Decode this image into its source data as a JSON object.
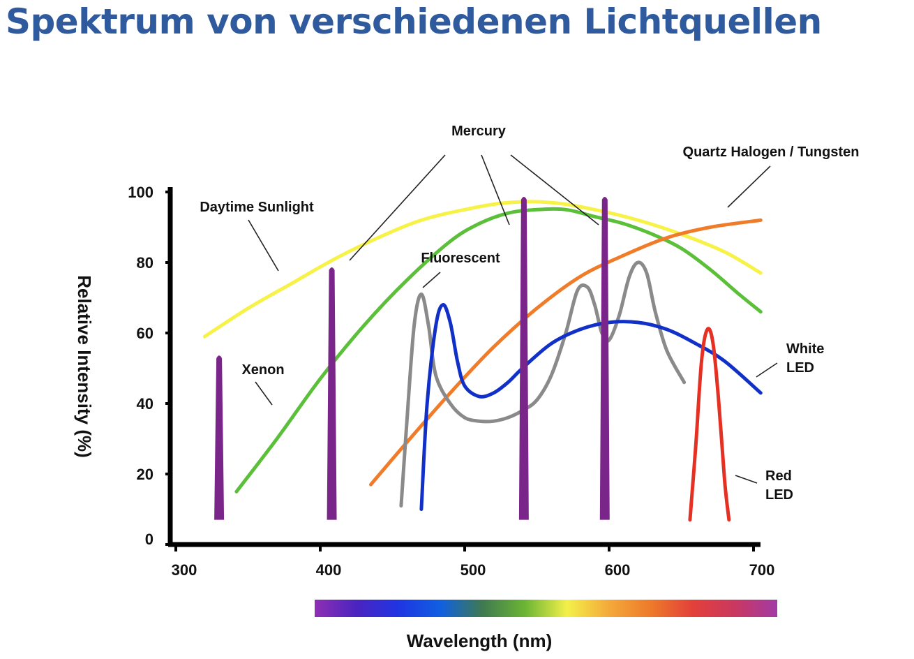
{
  "title": "Spektrum von verschiedenen Lichtquellen",
  "chart_data": {
    "type": "line",
    "xlabel": "Wavelength (nm)",
    "ylabel": "Relative Intensity (%)",
    "xlim": [
      300,
      700
    ],
    "ylim": [
      0,
      100
    ],
    "x_ticks": [
      300,
      400,
      500,
      600,
      700
    ],
    "y_ticks": [
      0,
      20,
      40,
      60,
      80,
      100
    ],
    "grid": false,
    "series": [
      {
        "name": "Daytime Sunlight",
        "color": "#f7f247",
        "x": [
          320,
          350,
          380,
          410,
          440,
          470,
          500,
          530,
          560,
          590,
          620,
          650,
          680,
          705
        ],
        "y": [
          59,
          67,
          74,
          81,
          87,
          92,
          95,
          97,
          97,
          95,
          92,
          88,
          83,
          77
        ]
      },
      {
        "name": "Xenon",
        "color": "#5bbf3a",
        "x": [
          342,
          370,
          400,
          430,
          460,
          490,
          510,
          530,
          550,
          570,
          590,
          610,
          630,
          650,
          670,
          690,
          705
        ],
        "y": [
          15,
          30,
          47,
          62,
          75,
          86,
          91,
          94,
          95,
          95,
          93,
          91,
          88,
          84,
          78,
          71,
          66
        ]
      },
      {
        "name": "Quartz Halogen / Tungsten",
        "color": "#f07c2a",
        "x": [
          435,
          460,
          490,
          520,
          550,
          580,
          610,
          640,
          670,
          705
        ],
        "y": [
          17,
          29,
          43,
          56,
          67,
          76,
          82,
          87,
          90,
          92
        ]
      },
      {
        "name": "Fluorescent",
        "color": "#8a8a8a",
        "x": [
          456,
          460,
          465,
          470,
          475,
          480,
          490,
          500,
          510,
          520,
          530,
          540,
          550,
          560,
          570,
          578,
          585,
          590,
          595,
          600,
          607,
          614,
          620,
          626,
          632,
          640,
          652
        ],
        "y": [
          11,
          35,
          62,
          71,
          62,
          48,
          40,
          36,
          35,
          35,
          36,
          38,
          41,
          48,
          60,
          72,
          73,
          68,
          60,
          58,
          65,
          76,
          80,
          77,
          66,
          55,
          46
        ]
      },
      {
        "name": "White LED",
        "color": "#1130c8",
        "x": [
          470,
          474,
          480,
          485,
          490,
          495,
          500,
          510,
          520,
          530,
          540,
          560,
          580,
          600,
          620,
          640,
          660,
          680,
          705
        ],
        "y": [
          10,
          40,
          62,
          68,
          63,
          52,
          45,
          42,
          43,
          46,
          50,
          57,
          61,
          63,
          63,
          61,
          57,
          52,
          43
        ]
      },
      {
        "name": "Red LED",
        "color": "#e53124",
        "x": [
          656,
          660,
          664,
          668,
          672,
          676,
          680,
          683
        ],
        "y": [
          7,
          28,
          52,
          61,
          57,
          40,
          18,
          7
        ]
      },
      {
        "name": "Mercury",
        "color": "#7a2589",
        "type": "spikes",
        "x": [
          330,
          408,
          541,
          597
        ],
        "y": [
          54,
          79,
          99,
          99
        ]
      }
    ],
    "annotations": [
      {
        "text": "Mercury"
      },
      {
        "text": "Quartz Halogen / Tungsten"
      },
      {
        "text": "Daytime Sunlight"
      },
      {
        "text": "Fluorescent"
      },
      {
        "text": "Xenon"
      },
      {
        "text": "White LED"
      },
      {
        "text": "Red LED"
      }
    ],
    "colorbar": {
      "stops": [
        "#8e2fb4",
        "#4a24c0",
        "#1f35e3",
        "#1060e0",
        "#3f7a50",
        "#6bb534",
        "#f3f04a",
        "#f4a93a",
        "#ed7a2a",
        "#e2403a",
        "#c93860",
        "#a23aa6"
      ]
    }
  }
}
